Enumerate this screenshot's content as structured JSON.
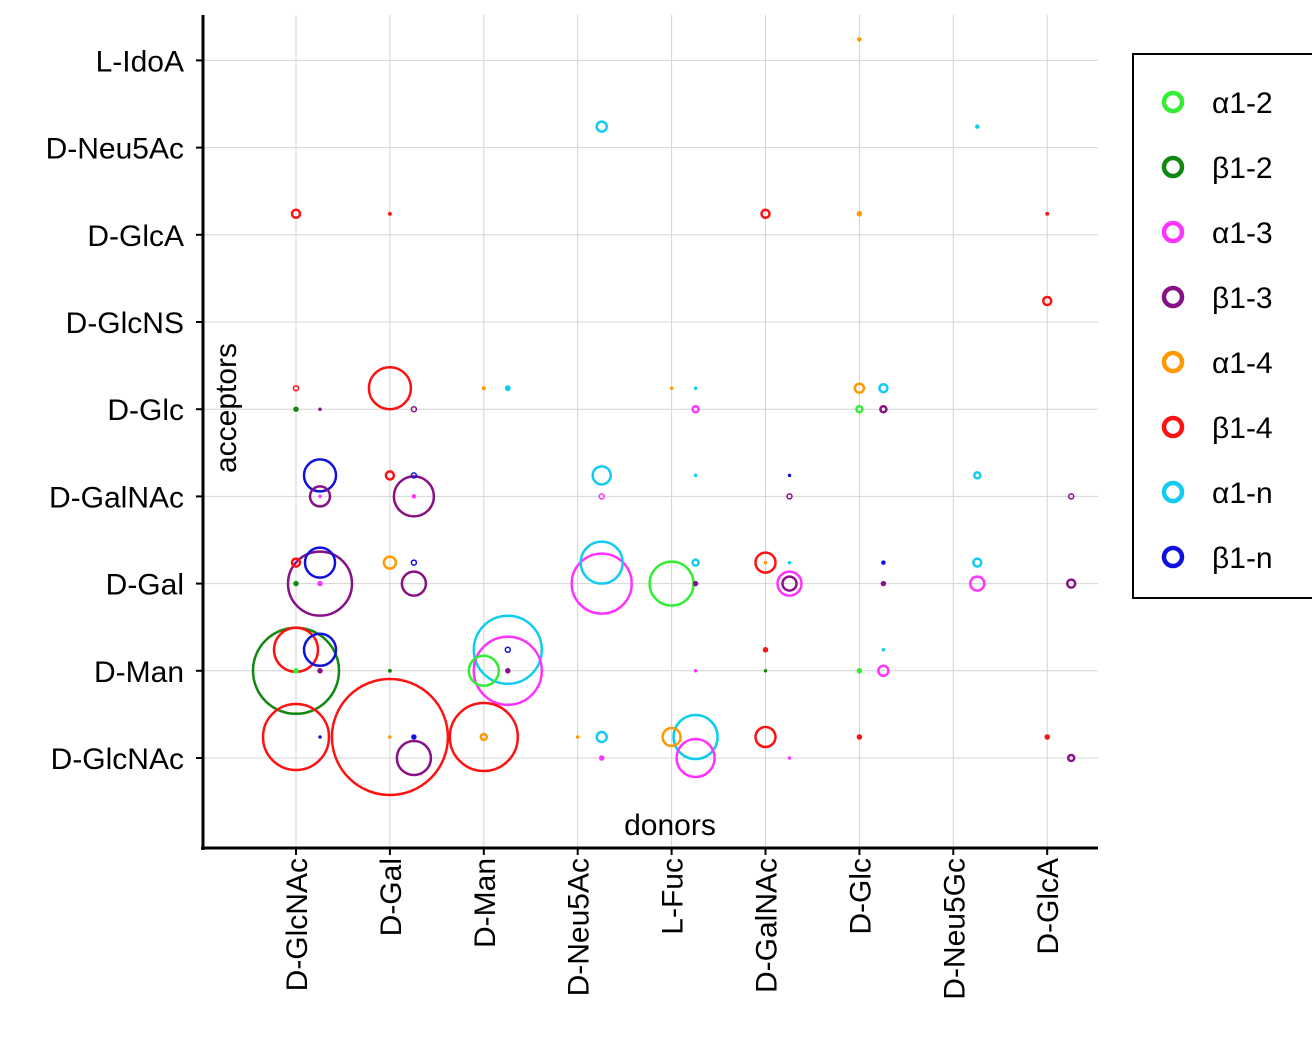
{
  "chart_data": {
    "type": "scatter",
    "xlabel": "donors",
    "ylabel": "acceptors",
    "x_categories": [
      "D-GlcNAc",
      "D-Gal",
      "D-Man",
      "D-Neu5Ac",
      "L-Fuc",
      "D-GalNAc",
      "D-Glc",
      "D-Neu5Gc",
      "D-GlcA"
    ],
    "y_categories": [
      "D-GlcNAc",
      "D-Man",
      "D-Gal",
      "D-GalNAc",
      "D-Glc",
      "D-GlcNS",
      "D-GlcA",
      "D-Neu5Ac",
      "L-IdoA"
    ],
    "grid": true,
    "legend_position": "right",
    "linkages": [
      {
        "name": "α1-2",
        "color": "#33ee33"
      },
      {
        "name": "β1-2",
        "color": "#118811"
      },
      {
        "name": "α1-3",
        "color": "#ff33ff"
      },
      {
        "name": "β1-3",
        "color": "#881188"
      },
      {
        "name": "α1-4",
        "color": "#ff9900"
      },
      {
        "name": "β1-4",
        "color": "#ff1111"
      },
      {
        "name": "α1-n",
        "color": "#11ccee"
      },
      {
        "name": "β1-n",
        "color": "#1111dd"
      }
    ],
    "points": [
      {
        "x": "D-GlcNAc",
        "y": "L-IdoA",
        "link": "α1-2",
        "size": 0
      },
      {
        "x": "D-Glc",
        "y": "L-IdoA",
        "link": "α1-4",
        "size": 1.5
      },
      {
        "x": "D-Neu5Ac",
        "y": "D-Neu5Ac",
        "link": "α1-n",
        "size": 5
      },
      {
        "x": "D-Neu5Gc",
        "y": "D-Neu5Ac",
        "link": "α1-n",
        "size": 1.5
      },
      {
        "x": "D-GlcNAc",
        "y": "D-GlcA",
        "link": "β1-4",
        "size": 4
      },
      {
        "x": "D-Gal",
        "y": "D-GlcA",
        "link": "β1-4",
        "size": 1.2
      },
      {
        "x": "D-GalNAc",
        "y": "D-GlcA",
        "link": "β1-4",
        "size": 4
      },
      {
        "x": "D-Glc",
        "y": "D-GlcA",
        "link": "α1-4",
        "size": 2
      },
      {
        "x": "D-GlcA",
        "y": "D-GlcA",
        "link": "β1-4",
        "size": 1.2
      },
      {
        "x": "D-GlcA",
        "y": "D-GlcNS",
        "link": "β1-4",
        "size": 4
      },
      {
        "x": "D-GlcNAc",
        "y": "D-Glc",
        "link": "β1-4",
        "size": 2.5
      },
      {
        "x": "D-GlcNAc",
        "y": "D-Glc",
        "link": "β1-2",
        "size": 2
      },
      {
        "x": "D-GlcNAc",
        "y": "D-Glc",
        "link": "β1-3",
        "size": 1
      },
      {
        "x": "D-Gal",
        "y": "D-Glc",
        "link": "β1-4",
        "size": 21
      },
      {
        "x": "D-Gal",
        "y": "D-Glc",
        "link": "β1-3",
        "size": 2.5
      },
      {
        "x": "D-Man",
        "y": "D-Glc",
        "link": "α1-4",
        "size": 1.2
      },
      {
        "x": "D-Man",
        "y": "D-Glc",
        "link": "α1-n",
        "size": 2.2
      },
      {
        "x": "L-Fuc",
        "y": "D-Glc",
        "link": "α1-4",
        "size": 1
      },
      {
        "x": "L-Fuc",
        "y": "D-Glc",
        "link": "α1-n",
        "size": 1
      },
      {
        "x": "L-Fuc",
        "y": "D-Glc",
        "link": "α1-3",
        "size": 3
      },
      {
        "x": "D-Glc",
        "y": "D-Glc",
        "link": "α1-4",
        "size": 4.5
      },
      {
        "x": "D-Glc",
        "y": "D-Glc",
        "link": "α1-n",
        "size": 4
      },
      {
        "x": "D-Glc",
        "y": "D-Glc",
        "link": "α1-2",
        "size": 3
      },
      {
        "x": "D-Glc",
        "y": "D-Glc",
        "link": "β1-3",
        "size": 3
      },
      {
        "x": "D-GlcNAc",
        "y": "D-GalNAc",
        "link": "β1-n",
        "size": 16
      },
      {
        "x": "D-GlcNAc",
        "y": "D-GalNAc",
        "link": "β1-3",
        "size": 10
      },
      {
        "x": "D-GlcNAc",
        "y": "D-GalNAc",
        "link": "α1-3",
        "size": 1
      },
      {
        "x": "D-Gal",
        "y": "D-GalNAc",
        "link": "β1-4",
        "size": 4
      },
      {
        "x": "D-Gal",
        "y": "D-GalNAc",
        "link": "β1-n",
        "size": 2.5
      },
      {
        "x": "D-Gal",
        "y": "D-GalNAc",
        "link": "β1-3",
        "size": 20
      },
      {
        "x": "D-Gal",
        "y": "D-GalNAc",
        "link": "α1-3",
        "size": 1.5
      },
      {
        "x": "D-Neu5Ac",
        "y": "D-GalNAc",
        "link": "α1-n",
        "size": 9
      },
      {
        "x": "D-Neu5Ac",
        "y": "D-GalNAc",
        "link": "α1-3",
        "size": 2.5
      },
      {
        "x": "L-Fuc",
        "y": "D-GalNAc",
        "link": "α1-n",
        "size": 1
      },
      {
        "x": "D-GalNAc",
        "y": "D-GalNAc",
        "link": "β1-n",
        "size": 1
      },
      {
        "x": "D-GalNAc",
        "y": "D-GalNAc",
        "link": "β1-3",
        "size": 2.5
      },
      {
        "x": "D-Neu5Gc",
        "y": "D-GalNAc",
        "link": "α1-n",
        "size": 3
      },
      {
        "x": "D-GlcA",
        "y": "D-GalNAc",
        "link": "β1-3",
        "size": 2.5
      },
      {
        "x": "D-GlcNAc",
        "y": "D-Gal",
        "link": "β1-4",
        "size": 4
      },
      {
        "x": "D-GlcNAc",
        "y": "D-Gal",
        "link": "β1-2",
        "size": 2
      },
      {
        "x": "D-GlcNAc",
        "y": "D-Gal",
        "link": "β1-n",
        "size": 15
      },
      {
        "x": "D-GlcNAc",
        "y": "D-Gal",
        "link": "β1-3",
        "size": 32
      },
      {
        "x": "D-GlcNAc",
        "y": "D-Gal",
        "link": "α1-3",
        "size": 2
      },
      {
        "x": "D-Gal",
        "y": "D-Gal",
        "link": "α1-4",
        "size": 6
      },
      {
        "x": "D-Gal",
        "y": "D-Gal",
        "link": "β1-n",
        "size": 2.5
      },
      {
        "x": "D-Gal",
        "y": "D-Gal",
        "link": "β1-3",
        "size": 12
      },
      {
        "x": "D-Neu5Ac",
        "y": "D-Gal",
        "link": "α1-n",
        "size": 21
      },
      {
        "x": "D-Neu5Ac",
        "y": "D-Gal",
        "link": "α1-3",
        "size": 30
      },
      {
        "x": "L-Fuc",
        "y": "D-Gal",
        "link": "α1-2",
        "size": 22
      },
      {
        "x": "L-Fuc",
        "y": "D-Gal",
        "link": "α1-n",
        "size": 3
      },
      {
        "x": "L-Fuc",
        "y": "D-Gal",
        "link": "β1-3",
        "size": 2
      },
      {
        "x": "D-GalNAc",
        "y": "D-Gal",
        "link": "β1-4",
        "size": 10
      },
      {
        "x": "D-GalNAc",
        "y": "D-Gal",
        "link": "α1-4",
        "size": 1
      },
      {
        "x": "D-GalNAc",
        "y": "D-Gal",
        "link": "α1-n",
        "size": 1
      },
      {
        "x": "D-GalNAc",
        "y": "D-Gal",
        "link": "α1-3",
        "size": 12
      },
      {
        "x": "D-GalNAc",
        "y": "D-Gal",
        "link": "β1-3",
        "size": 7
      },
      {
        "x": "D-Glc",
        "y": "D-Gal",
        "link": "β1-n",
        "size": 1.5
      },
      {
        "x": "D-Glc",
        "y": "D-Gal",
        "link": "β1-3",
        "size": 2
      },
      {
        "x": "D-Neu5Gc",
        "y": "D-Gal",
        "link": "α1-n",
        "size": 4
      },
      {
        "x": "D-Neu5Gc",
        "y": "D-Gal",
        "link": "α1-3",
        "size": 7
      },
      {
        "x": "D-GlcA",
        "y": "D-Gal",
        "link": "β1-3",
        "size": 4
      },
      {
        "x": "D-GlcNAc",
        "y": "D-Man",
        "link": "β1-2",
        "size": 43
      },
      {
        "x": "D-GlcNAc",
        "y": "D-Man",
        "link": "β1-4",
        "size": 22
      },
      {
        "x": "D-GlcNAc",
        "y": "D-Man",
        "link": "β1-n",
        "size": 16
      },
      {
        "x": "D-GlcNAc",
        "y": "D-Man",
        "link": "α1-2",
        "size": 2
      },
      {
        "x": "D-GlcNAc",
        "y": "D-Man",
        "link": "β1-3",
        "size": 2
      },
      {
        "x": "D-Gal",
        "y": "D-Man",
        "link": "β1-2",
        "size": 1.2
      },
      {
        "x": "D-Man",
        "y": "D-Man",
        "link": "α1-n",
        "size": 34
      },
      {
        "x": "D-Man",
        "y": "D-Man",
        "link": "α1-3",
        "size": 34
      },
      {
        "x": "D-Man",
        "y": "D-Man",
        "link": "α1-2",
        "size": 15
      },
      {
        "x": "D-Man",
        "y": "D-Man",
        "link": "β1-n",
        "size": 2.5
      },
      {
        "x": "D-Man",
        "y": "D-Man",
        "link": "β1-3",
        "size": 2
      },
      {
        "x": "L-Fuc",
        "y": "D-Man",
        "link": "α1-3",
        "size": 1
      },
      {
        "x": "D-GalNAc",
        "y": "D-Man",
        "link": "β1-4",
        "size": 2
      },
      {
        "x": "D-GalNAc",
        "y": "D-Man",
        "link": "β1-2",
        "size": 1
      },
      {
        "x": "D-Glc",
        "y": "D-Man",
        "link": "α1-2",
        "size": 2
      },
      {
        "x": "D-Glc",
        "y": "D-Man",
        "link": "α1-n",
        "size": 1
      },
      {
        "x": "D-Glc",
        "y": "D-Man",
        "link": "α1-3",
        "size": 5
      },
      {
        "x": "D-GlcNAc",
        "y": "D-GlcNAc",
        "link": "β1-4",
        "size": 33
      },
      {
        "x": "D-GlcNAc",
        "y": "D-GlcNAc",
        "link": "β1-n",
        "size": 1
      },
      {
        "x": "D-Gal",
        "y": "D-GlcNAc",
        "link": "β1-4",
        "size": 58
      },
      {
        "x": "D-Gal",
        "y": "D-GlcNAc",
        "link": "α1-4",
        "size": 1
      },
      {
        "x": "D-Gal",
        "y": "D-GlcNAc",
        "link": "β1-n",
        "size": 2
      },
      {
        "x": "D-Gal",
        "y": "D-GlcNAc",
        "link": "β1-3",
        "size": 17
      },
      {
        "x": "D-Man",
        "y": "D-GlcNAc",
        "link": "β1-4",
        "size": 34
      },
      {
        "x": "D-Man",
        "y": "D-GlcNAc",
        "link": "α1-4",
        "size": 3
      },
      {
        "x": "D-Neu5Ac",
        "y": "D-GlcNAc",
        "link": "α1-4",
        "size": 1
      },
      {
        "x": "D-Neu5Ac",
        "y": "D-GlcNAc",
        "link": "α1-n",
        "size": 5
      },
      {
        "x": "D-Neu5Ac",
        "y": "D-GlcNAc",
        "link": "α1-3",
        "size": 2
      },
      {
        "x": "L-Fuc",
        "y": "D-GlcNAc",
        "link": "α1-4",
        "size": 9
      },
      {
        "x": "L-Fuc",
        "y": "D-GlcNAc",
        "link": "α1-n",
        "size": 22
      },
      {
        "x": "L-Fuc",
        "y": "D-GlcNAc",
        "link": "α1-3",
        "size": 19
      },
      {
        "x": "D-GalNAc",
        "y": "D-GlcNAc",
        "link": "β1-4",
        "size": 10
      },
      {
        "x": "D-GalNAc",
        "y": "D-GlcNAc",
        "link": "α1-3",
        "size": 1
      },
      {
        "x": "D-Glc",
        "y": "D-GlcNAc",
        "link": "β1-4",
        "size": 2
      },
      {
        "x": "D-GlcA",
        "y": "D-GlcNAc",
        "link": "β1-4",
        "size": 2
      },
      {
        "x": "D-GlcA",
        "y": "D-GlcNAc",
        "link": "β1-3",
        "size": 3
      }
    ]
  }
}
